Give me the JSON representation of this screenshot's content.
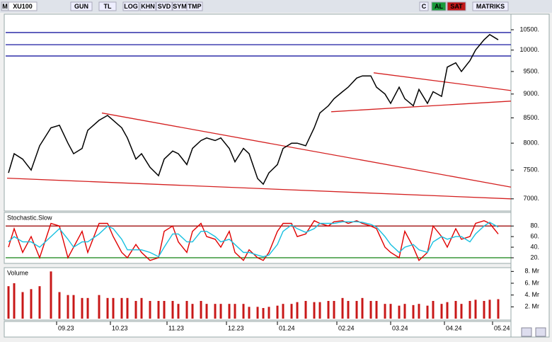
{
  "toolbar": {
    "buttons": [
      "M",
      "XU100",
      "GUN",
      "TL",
      "LOG",
      "KHN",
      "SVD",
      "SYM",
      "TMP",
      "C",
      "AL",
      "SAT",
      "MATRIKS"
    ]
  },
  "chart_data": [
    {
      "type": "line",
      "log": true,
      "color": "#000000",
      "x": [
        1,
        3,
        6,
        9,
        12,
        16,
        19,
        22,
        24,
        27,
        29,
        33,
        36,
        38,
        41,
        43,
        46,
        48,
        51,
        54,
        56,
        59,
        61,
        64,
        66,
        69,
        71,
        74,
        76,
        79,
        81,
        84,
        86,
        89,
        91,
        93,
        96,
        98,
        101,
        103,
        106,
        109,
        111,
        114,
        116,
        119,
        121,
        124,
        126,
        129,
        131,
        134,
        136,
        139,
        141,
        144,
        146,
        149,
        151,
        154,
        156,
        159,
        161,
        164,
        166,
        169,
        171,
        174
      ],
      "values": [
        7450,
        7800,
        7700,
        7500,
        7950,
        8300,
        8350,
        8000,
        7800,
        7900,
        8250,
        8450,
        8550,
        8450,
        8300,
        8100,
        7700,
        7800,
        7550,
        7400,
        7700,
        7850,
        7800,
        7600,
        7900,
        8050,
        8100,
        8050,
        8100,
        7900,
        7650,
        7900,
        7800,
        7350,
        7250,
        7450,
        7600,
        7900,
        8000,
        8000,
        7950,
        8300,
        8600,
        8750,
        8900,
        9050,
        9150,
        9350,
        9400,
        9400,
        9150,
        9000,
        8800,
        9150,
        8900,
        8750,
        9100,
        8800,
        9050,
        8950,
        9600,
        9700,
        9500,
        9750,
        10000,
        10250,
        10380,
        10250
      ],
      "xlim": [
        0,
        178.5
      ],
      "ylim": [
        6810,
        10900
      ],
      "yticks": [
        {
          "value": 10500,
          "label": "10500."
        },
        {
          "value": 10000,
          "label": "10000."
        },
        {
          "value": 9500,
          "label": "9500."
        },
        {
          "value": 9000,
          "label": "9000."
        },
        {
          "value": 8500,
          "label": "8500."
        },
        {
          "value": 8000,
          "label": "8000."
        },
        {
          "value": 7500,
          "label": "7500."
        },
        {
          "value": 7000,
          "label": "7000."
        }
      ],
      "hlines": [
        10430,
        10130,
        9860
      ],
      "hline_color": "#1a1aa0",
      "trendlines": [
        {
          "x": [
            34,
            178.5
          ],
          "y": [
            8600,
            7200
          ]
        },
        {
          "x": [
            0.5,
            178.5
          ],
          "y": [
            7355,
            7000
          ]
        },
        {
          "x": [
            130,
            178.5
          ],
          "y": [
            9470,
            9076
          ]
        },
        {
          "x": [
            115,
            178.5
          ],
          "y": [
            8626,
            8848
          ]
        }
      ],
      "trend_color": "#d42020"
    },
    {
      "type": "line",
      "title": "Stochastic.Slow",
      "x": [
        1,
        3,
        6,
        9,
        12,
        16,
        19,
        22,
        24,
        27,
        29,
        33,
        36,
        38,
        41,
        43,
        46,
        48,
        51,
        54,
        56,
        59,
        61,
        64,
        66,
        69,
        71,
        74,
        76,
        79,
        81,
        84,
        86,
        89,
        91,
        93,
        96,
        98,
        101,
        103,
        106,
        109,
        111,
        114,
        116,
        119,
        121,
        124,
        126,
        129,
        131,
        134,
        136,
        139,
        141,
        144,
        146,
        149,
        151,
        154,
        156,
        159,
        161,
        164,
        166,
        169,
        171,
        174
      ],
      "series": [
        {
          "color": "#e00000",
          "values": [
            40,
            75,
            30,
            60,
            20,
            85,
            80,
            20,
            40,
            70,
            30,
            85,
            85,
            60,
            30,
            20,
            45,
            30,
            15,
            20,
            70,
            80,
            50,
            30,
            70,
            85,
            60,
            55,
            40,
            70,
            30,
            15,
            35,
            20,
            15,
            30,
            70,
            85,
            85,
            60,
            65,
            90,
            85,
            80,
            88,
            90,
            85,
            90,
            85,
            80,
            75,
            40,
            30,
            20,
            70,
            40,
            15,
            30,
            80,
            60,
            40,
            75,
            55,
            60,
            85,
            90,
            85,
            65
          ]
        },
        {
          "color": "#18c0e0",
          "values": [
            50,
            60,
            50,
            50,
            40,
            60,
            75,
            55,
            40,
            50,
            50,
            65,
            80,
            75,
            55,
            35,
            35,
            35,
            30,
            22,
            40,
            65,
            65,
            50,
            50,
            70,
            70,
            60,
            50,
            55,
            45,
            30,
            30,
            25,
            22,
            25,
            45,
            70,
            82,
            75,
            68,
            75,
            85,
            85,
            85,
            88,
            88,
            88,
            87,
            83,
            78,
            60,
            45,
            30,
            40,
            45,
            35,
            30,
            50,
            60,
            55,
            60,
            60,
            50,
            65,
            80,
            87,
            78
          ]
        }
      ],
      "xlim": [
        0,
        178.5
      ],
      "ylim": [
        12,
        103
      ],
      "yticks": [
        {
          "value": 80,
          "label": "80."
        },
        {
          "value": 60,
          "label": "60."
        },
        {
          "value": 40,
          "label": "40."
        },
        {
          "value": 20,
          "label": "20."
        }
      ],
      "levels": [
        80,
        20
      ],
      "level_colors": [
        "#a01010",
        "#108010"
      ]
    },
    {
      "type": "bar",
      "title": "Volume",
      "color": "#c81818",
      "x": [
        1,
        3,
        6,
        9,
        12,
        16,
        19,
        22,
        24,
        27,
        29,
        33,
        36,
        38,
        41,
        43,
        46,
        48,
        51,
        54,
        56,
        59,
        61,
        64,
        66,
        69,
        71,
        74,
        76,
        79,
        81,
        84,
        86,
        89,
        91,
        93,
        96,
        98,
        101,
        103,
        106,
        109,
        111,
        114,
        116,
        119,
        121,
        124,
        126,
        129,
        131,
        134,
        136,
        139,
        141,
        144,
        146,
        149,
        151,
        154,
        156,
        159,
        161,
        164,
        166,
        169,
        171,
        174
      ],
      "values": [
        5.5,
        6,
        4.5,
        5,
        5.5,
        8,
        4.5,
        4,
        4,
        3.5,
        3.5,
        4,
        3.5,
        3.5,
        3.5,
        3.5,
        3,
        3.5,
        3,
        3,
        3,
        3,
        2.5,
        3,
        2.5,
        3,
        2.5,
        2.5,
        2.5,
        2.5,
        2.5,
        2.5,
        2,
        2,
        1.8,
        2,
        2.2,
        2.5,
        2.5,
        2.8,
        3,
        2.8,
        2.8,
        3,
        3,
        3.5,
        3,
        3,
        3.5,
        3,
        3,
        2.5,
        2.5,
        2.2,
        2.5,
        2.3,
        2.5,
        2.2,
        3,
        2.5,
        2.8,
        3,
        2.5,
        3,
        3.2,
        3,
        3.2,
        3.3
      ],
      "xlim": [
        0,
        178.5
      ],
      "ylim": [
        0,
        8.4
      ],
      "yticks": [
        {
          "value": 8,
          "label": "8. Mr"
        },
        {
          "value": 6,
          "label": "6. Mr"
        },
        {
          "value": 4,
          "label": "4. Mr"
        },
        {
          "value": 2,
          "label": "2. Mr"
        }
      ],
      "xticks": [
        {
          "value": 18,
          "label": "09.23"
        },
        {
          "value": 37,
          "label": "10.23"
        },
        {
          "value": 57,
          "label": "11.23"
        },
        {
          "value": 78,
          "label": "12.23"
        },
        {
          "value": 96,
          "label": "01.24"
        },
        {
          "value": 117,
          "label": "02.24"
        },
        {
          "value": 136,
          "label": "03.24"
        },
        {
          "value": 155,
          "label": "04.24"
        },
        {
          "value": 172,
          "label": "05.24"
        }
      ]
    }
  ]
}
